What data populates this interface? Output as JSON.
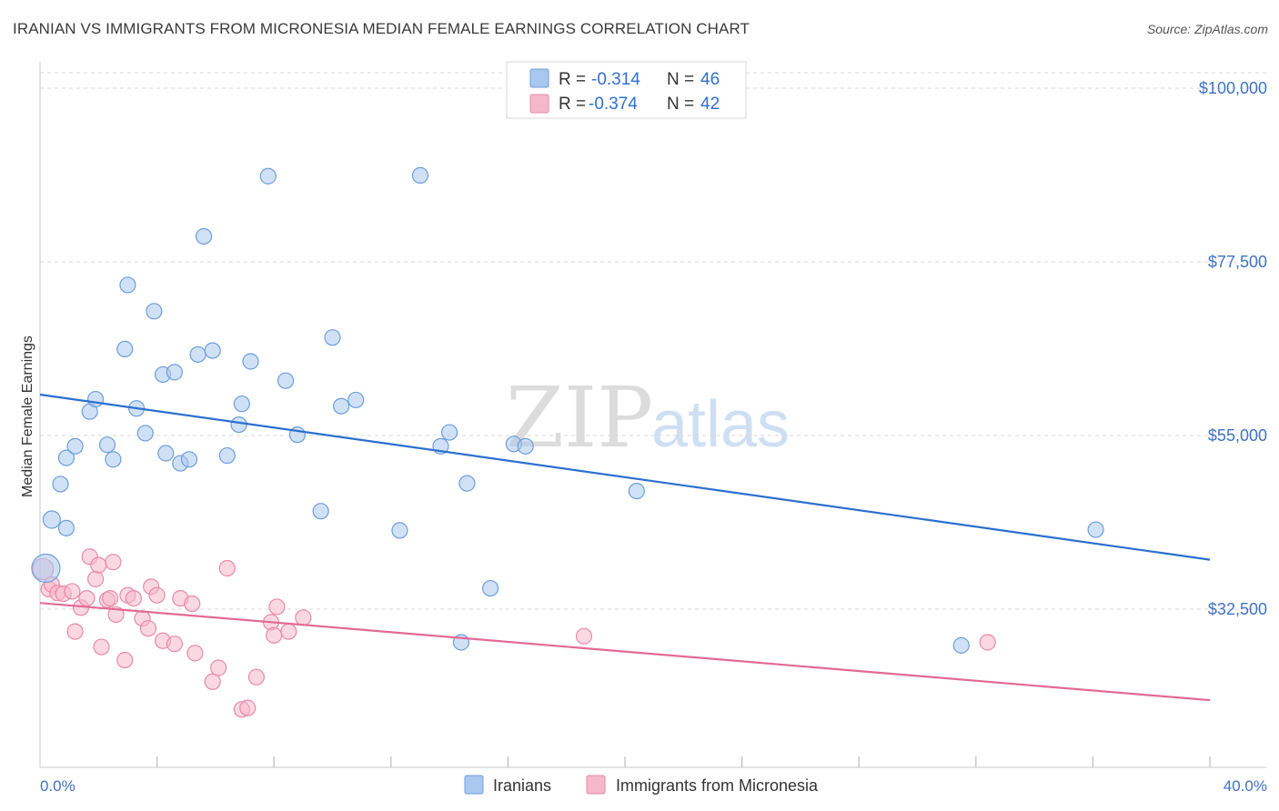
{
  "header": {
    "title": "IRANIAN VS IMMIGRANTS FROM MICRONESIA MEDIAN FEMALE EARNINGS CORRELATION CHART",
    "source": "Source: ZipAtlas.com"
  },
  "watermark": {
    "zip": "ZIP",
    "atlas": "atlas"
  },
  "legend_top": [
    {
      "r_label": "R =",
      "r_value": "-0.314",
      "n_label": "N =",
      "n_value": "46",
      "color": "#a9c8ef"
    },
    {
      "r_label": "R =",
      "r_value": "-0.374",
      "n_label": "N =",
      "n_value": "42",
      "color": "#f5b8cb"
    }
  ],
  "legend_bottom": [
    {
      "label": "Iranians",
      "color": "#a9c8ef"
    },
    {
      "label": "Immigrants from Micronesia",
      "color": "#f5b8cb"
    }
  ],
  "colors": {
    "blue_fill": "#a9c8ef",
    "blue_stroke": "#6d9fdc",
    "blue_line": "#2b6fcf",
    "pink_fill": "#f5b8cb",
    "pink_stroke": "#e98aa8",
    "pink_line": "#e26a95",
    "tick_text": "#3f73c4",
    "grid": "#d9d9d9"
  },
  "chart_data": {
    "type": "scatter",
    "title": "IRANIAN VS IMMIGRANTS FROM MICRONESIA MEDIAN FEMALE EARNINGS CORRELATION CHART",
    "xlabel": "",
    "ylabel": "Median Female Earnings",
    "xlim": [
      0,
      40
    ],
    "ylim": [
      12000,
      102000
    ],
    "x_tick_labels": [
      "0.0%",
      "40.0%"
    ],
    "y_ticks": [
      32500,
      55000,
      77500,
      100000
    ],
    "y_tick_labels": [
      "$32,500",
      "$55,000",
      "$77,500",
      "$100,000"
    ],
    "grid": true,
    "legend_position": "top-center",
    "series": [
      {
        "name": "Iranians",
        "r": -0.314,
        "n": 46,
        "trend": {
          "x": [
            0,
            40
          ],
          "y": [
            60300,
            38900
          ]
        },
        "points": [
          [
            0.2,
            37800,
            30
          ],
          [
            0.4,
            44100,
            18
          ],
          [
            0.7,
            48700,
            16
          ],
          [
            0.9,
            43000,
            16
          ],
          [
            0.9,
            52100,
            16
          ],
          [
            1.2,
            53600,
            16
          ],
          [
            1.7,
            58100,
            16
          ],
          [
            1.9,
            59700,
            16
          ],
          [
            2.3,
            53800,
            16
          ],
          [
            2.5,
            51900,
            16
          ],
          [
            2.9,
            66200,
            16
          ],
          [
            3.0,
            74500,
            16
          ],
          [
            3.3,
            58500,
            16
          ],
          [
            3.6,
            55300,
            16
          ],
          [
            3.9,
            71100,
            16
          ],
          [
            4.2,
            62900,
            16
          ],
          [
            4.3,
            52700,
            16
          ],
          [
            4.6,
            63200,
            16
          ],
          [
            4.8,
            51400,
            16
          ],
          [
            5.1,
            51900,
            16
          ],
          [
            5.4,
            65500,
            16
          ],
          [
            5.6,
            80800,
            16
          ],
          [
            5.9,
            66000,
            16
          ],
          [
            6.4,
            52400,
            16
          ],
          [
            6.8,
            56400,
            16
          ],
          [
            6.9,
            59100,
            16
          ],
          [
            7.2,
            64600,
            16
          ],
          [
            7.8,
            88600,
            16
          ],
          [
            8.4,
            62100,
            16
          ],
          [
            8.8,
            55100,
            16
          ],
          [
            9.6,
            45200,
            16
          ],
          [
            10.0,
            67700,
            16
          ],
          [
            10.3,
            58800,
            16
          ],
          [
            10.8,
            59600,
            16
          ],
          [
            12.3,
            42700,
            16
          ],
          [
            13.0,
            88700,
            16
          ],
          [
            13.7,
            53600,
            16
          ],
          [
            14.0,
            55400,
            16
          ],
          [
            14.4,
            28200,
            16
          ],
          [
            14.6,
            48800,
            16
          ],
          [
            15.4,
            35200,
            16
          ],
          [
            16.2,
            53900,
            16
          ],
          [
            16.6,
            53600,
            16
          ],
          [
            20.4,
            47800,
            16
          ],
          [
            31.5,
            27800,
            16
          ],
          [
            36.1,
            42800,
            16
          ]
        ]
      },
      {
        "name": "Immigrants from Micronesia",
        "r": -0.374,
        "n": 42,
        "trend": {
          "x": [
            0,
            40
          ],
          "y": [
            33300,
            20700
          ]
        },
        "points": [
          [
            0.1,
            37700,
            22
          ],
          [
            0.3,
            35100,
            16
          ],
          [
            0.4,
            35700,
            16
          ],
          [
            0.6,
            34600,
            16
          ],
          [
            0.8,
            34500,
            16
          ],
          [
            1.1,
            34800,
            16
          ],
          [
            1.2,
            29600,
            16
          ],
          [
            1.4,
            32700,
            16
          ],
          [
            1.6,
            33900,
            16
          ],
          [
            1.7,
            39300,
            16
          ],
          [
            1.9,
            36400,
            16
          ],
          [
            2.0,
            38200,
            16
          ],
          [
            2.1,
            27600,
            16
          ],
          [
            2.3,
            33700,
            16
          ],
          [
            2.4,
            33900,
            16
          ],
          [
            2.5,
            38600,
            16
          ],
          [
            2.6,
            31800,
            16
          ],
          [
            2.9,
            25900,
            16
          ],
          [
            3.0,
            34300,
            16
          ],
          [
            3.2,
            33900,
            16
          ],
          [
            3.5,
            31300,
            16
          ],
          [
            3.7,
            30000,
            16
          ],
          [
            3.8,
            35400,
            16
          ],
          [
            4.0,
            34300,
            16
          ],
          [
            4.2,
            28400,
            16
          ],
          [
            4.6,
            28000,
            16
          ],
          [
            4.8,
            33900,
            16
          ],
          [
            5.2,
            33200,
            16
          ],
          [
            5.3,
            26800,
            16
          ],
          [
            5.9,
            23100,
            16
          ],
          [
            6.1,
            24900,
            16
          ],
          [
            6.4,
            37800,
            16
          ],
          [
            6.9,
            19500,
            16
          ],
          [
            7.1,
            19700,
            16
          ],
          [
            7.4,
            23700,
            16
          ],
          [
            7.9,
            30800,
            16
          ],
          [
            8.0,
            29100,
            16
          ],
          [
            8.1,
            32800,
            16
          ],
          [
            8.5,
            29600,
            16
          ],
          [
            9.0,
            31400,
            16
          ],
          [
            18.6,
            29000,
            16
          ],
          [
            32.4,
            28200,
            16
          ]
        ]
      }
    ]
  }
}
